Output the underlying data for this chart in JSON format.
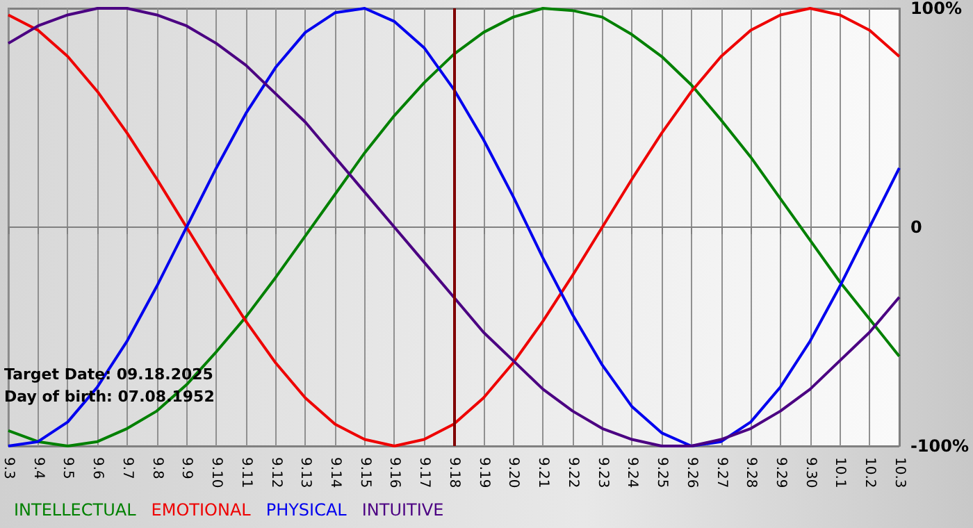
{
  "chart_data": {
    "type": "line",
    "categories": [
      "9.3",
      "9.4",
      "9.5",
      "9.6",
      "9.7",
      "9.8",
      "9.9",
      "9.10",
      "9.11",
      "9.12",
      "9.13",
      "9.14",
      "9.15",
      "9.16",
      "9.17",
      "9.18",
      "9.19",
      "9.20",
      "9.21",
      "9.22",
      "9.23",
      "9.24",
      "9.25",
      "9.26",
      "9.27",
      "9.28",
      "9.29",
      "9.30",
      "10.1",
      "10.2",
      "10.3"
    ],
    "series": [
      {
        "name": "INTELLECTUAL",
        "color": "#008000",
        "values": [
          -93,
          -98,
          -100,
          -98,
          -92,
          -84,
          -72,
          -57,
          -41,
          -23,
          -4,
          15,
          34,
          51,
          66,
          79,
          89,
          96,
          100,
          99,
          96,
          88,
          78,
          65,
          49,
          32,
          13,
          -6,
          -25,
          -42,
          -59
        ]
      },
      {
        "name": "EMOTIONAL",
        "color": "#ee0000",
        "values": [
          97,
          90,
          78,
          62,
          43,
          22,
          0,
          -22,
          -43,
          -62,
          -78,
          -90,
          -97,
          -100,
          -97,
          -90,
          -78,
          -62,
          -43,
          -22,
          0,
          22,
          43,
          62,
          78,
          90,
          97,
          100,
          97,
          90,
          78
        ]
      },
      {
        "name": "PHYSICAL",
        "color": "#0000ee",
        "values": [
          -100,
          -98,
          -89,
          -73,
          -52,
          -27,
          0,
          27,
          52,
          73,
          89,
          98,
          100,
          94,
          82,
          63,
          40,
          14,
          -14,
          -40,
          -63,
          -82,
          -94,
          -100,
          -98,
          -89,
          -73,
          -52,
          -27,
          0,
          27
        ]
      },
      {
        "name": "INTUITIVE",
        "color": "#4b0082",
        "values": [
          84,
          92,
          97,
          100,
          100,
          97,
          92,
          84,
          74,
          61,
          48,
          32,
          16,
          0,
          -16,
          -32,
          -48,
          -61,
          -74,
          -84,
          -92,
          -97,
          -100,
          -100,
          -97,
          -92,
          -84,
          -74,
          -61,
          -48,
          -32
        ]
      }
    ],
    "ylim": [
      -100,
      100
    ],
    "yticks": [
      {
        "value": -100,
        "label": "-100%"
      },
      {
        "value": 0,
        "label": "0"
      },
      {
        "value": 100,
        "label": "100%"
      }
    ],
    "grid": true,
    "legend": "bottom left",
    "marker": "none",
    "line_style": "solid",
    "ref_lines": [
      {
        "axis": "x",
        "value": "9.18",
        "color": "#800000"
      }
    ],
    "annotations": [
      "Target Date: 09.18.2025",
      "Day of birth: 07.08.1952"
    ]
  }
}
